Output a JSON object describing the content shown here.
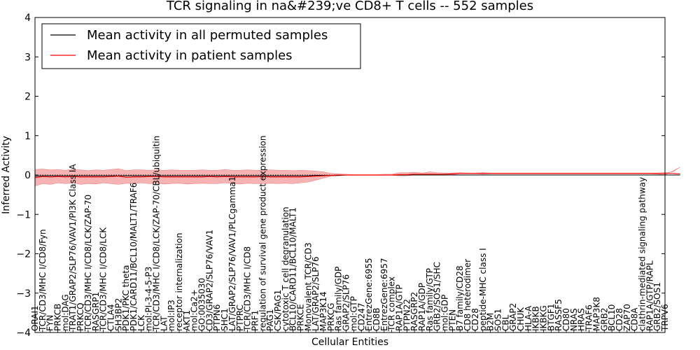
{
  "chart_data": {
    "type": "line",
    "title": "TCR signaling in na&#239;ve CD8+ T cells -- 552 samples",
    "xlabel": "Cellular Entities",
    "ylabel": "Inferred Activity",
    "ylim": [
      -4,
      4
    ],
    "yticks": [
      "−4",
      "−3",
      "−2",
      "−1",
      "0",
      "1",
      "2",
      "3",
      "4"
    ],
    "ytick_values": [
      -4,
      -3,
      -2,
      -1,
      0,
      1,
      2,
      3,
      4
    ],
    "legend_position": "top-left",
    "series": [
      {
        "name": "Mean activity in all permuted samples",
        "color": "#000000"
      },
      {
        "name": "Mean activity in patient samples",
        "color": "#ff0000"
      }
    ],
    "band_color": "#f08080",
    "categories": [
      "ORAI1",
      "TCR/CD3/MHC I/CD8/Fyn",
      "FYN",
      "PRKCB",
      "mol:DAG",
      "TRAT1/GRAP2/SLP76/VAV1/PI3K Class IA",
      "PRKCQ",
      "TCR/CD3/MHC I/CD8/LCK/ZAP-70",
      "RASGRP1",
      "TCR/CD3/MHC I/CD8/LCK",
      "CTLA4",
      "SH3BP2",
      "PDK1/PKC theta",
      "PDK1/CARD11/BCL10/MALT1/TRAF6",
      "LCK",
      "mol:PI-3-4-5-P3",
      "TCR/CD3/MHC I/CD8/LCK/ZAP-70/CBL/ubiquitin",
      "LAT",
      "mol:IP3",
      "receptor internalization",
      "AKT1",
      "mol:Ca2+",
      "GO:0035030",
      "CD3/GRAP2/SLP76/VAV1",
      "PTPN6",
      "SHC1",
      "LAT/GRAP2/SLP76/VAV1/PLCgamma1",
      "PTPRC",
      "TCR/CD3/MHC I/CD8",
      "PRF1",
      "regulation of survival gene product expression",
      "PAG1",
      "CSK/PAG1",
      "cytotoxic T cell degranulation",
      "BCL10/CARD11/BCL10/MALT1",
      "PRKCE",
      "Monovalent TCR/CD3",
      "LAT/GRAP2/SLP76",
      "MAP3K14",
      "PRKCG",
      "Ras family/GDP",
      "GRAP2/SLP76",
      "mol:GTP",
      "CD247",
      "EntrezGene:6955",
      "CD8B",
      "EntrezGene:6957",
      "TCR complex",
      "RAP1A/GTP",
      "PTPN22",
      "RASGRP2",
      "RAP1A/GDP",
      "Ras family/GTP",
      "GRB2/SOS1/SHC",
      "mol:GDP",
      "PTEN",
      "B7 family/CD28",
      "CD8 heterodimer",
      "CD28",
      "peptide-MHC class I",
      "B2M",
      "SOS1",
      "CBL",
      "GRAP2",
      "CHUK",
      "HLA-A",
      "IKBKB",
      "IKBKG",
      "BTGF1",
      "RASSF5",
      "CD80",
      "NRAS",
      "HRAS",
      "TRAF6",
      "MAP3K8",
      "GRB2",
      "BCL10",
      "CD28",
      "ZAP70",
      "CD8A",
      "clathrin-mediated signaling pathway",
      "RAP1A/GTP/RAPL",
      "GRB2/SOS1",
      "TRPV6"
    ],
    "mean_permuted": [
      -0.03,
      -0.02,
      -0.02,
      -0.02,
      -0.02,
      -0.02,
      -0.02,
      -0.02,
      -0.02,
      -0.02,
      -0.02,
      -0.02,
      -0.02,
      -0.02,
      -0.02,
      -0.02,
      -0.02,
      -0.02,
      -0.02,
      -0.02,
      -0.02,
      -0.02,
      -0.02,
      -0.02,
      -0.02,
      -0.02,
      -0.02,
      -0.02,
      -0.02,
      -0.02,
      -0.02,
      -0.02,
      -0.02,
      -0.02,
      -0.02,
      -0.02,
      -0.02,
      -0.01,
      -0.01,
      -0.01,
      -0.01,
      0.0,
      0.0,
      0.0,
      0.0,
      0.0,
      0.0,
      0.0,
      0.0,
      0.0,
      0.0,
      0.0,
      0.0,
      0.0,
      0.0,
      0.0,
      0.0,
      0.0,
      0.0,
      0.0,
      0.0,
      0.0,
      0.0,
      0.0,
      0.0,
      0.0,
      0.0,
      0.0,
      0.0,
      0.0,
      0.0,
      0.0,
      0.0,
      0.0,
      0.0,
      0.0,
      0.0,
      0.0,
      0.0,
      0.0,
      0.0,
      0.0,
      0.0,
      0.0,
      0.0,
      0.0
    ],
    "mean_patient": [
      -0.07,
      -0.04,
      -0.05,
      -0.04,
      -0.05,
      -0.04,
      -0.05,
      -0.05,
      -0.05,
      -0.05,
      -0.04,
      -0.03,
      -0.06,
      -0.05,
      -0.05,
      -0.04,
      -0.04,
      -0.05,
      -0.05,
      -0.05,
      -0.05,
      -0.05,
      -0.05,
      -0.04,
      -0.05,
      -0.04,
      -0.05,
      -0.05,
      -0.05,
      -0.05,
      -0.04,
      -0.05,
      -0.05,
      -0.05,
      -0.05,
      -0.05,
      -0.04,
      -0.03,
      -0.02,
      -0.01,
      0.0,
      0.0,
      0.0,
      0.0,
      0.0,
      0.0,
      0.0,
      0.0,
      0.01,
      0.01,
      0.02,
      0.02,
      0.02,
      0.02,
      0.02,
      0.03,
      0.04,
      0.04,
      0.04,
      0.04,
      0.04,
      0.04,
      0.04,
      0.04,
      0.04,
      0.04,
      0.04,
      0.04,
      0.04,
      0.04,
      0.04,
      0.04,
      0.04,
      0.04,
      0.04,
      0.04,
      0.04,
      0.04,
      0.04,
      0.04,
      0.04,
      0.04,
      0.04,
      0.04,
      0.04,
      0.03
    ],
    "band_upper": [
      0.14,
      0.15,
      0.13,
      0.14,
      0.12,
      0.14,
      0.13,
      0.11,
      0.13,
      0.12,
      0.14,
      0.16,
      0.11,
      0.13,
      0.13,
      0.12,
      0.13,
      0.12,
      0.13,
      0.12,
      0.12,
      0.12,
      0.13,
      0.12,
      0.12,
      0.14,
      0.12,
      0.12,
      0.13,
      0.12,
      0.12,
      0.13,
      0.12,
      0.12,
      0.11,
      0.12,
      0.11,
      0.1,
      0.08,
      0.04,
      0.03,
      0.02,
      0.01,
      0.01,
      0.01,
      0.01,
      0.02,
      0.02,
      0.06,
      0.06,
      0.07,
      0.05,
      0.08,
      0.06,
      0.05,
      0.05,
      0.06,
      0.05,
      0.05,
      0.06,
      0.05,
      0.05,
      0.05,
      0.05,
      0.05,
      0.05,
      0.05,
      0.05,
      0.05,
      0.05,
      0.05,
      0.05,
      0.05,
      0.05,
      0.05,
      0.05,
      0.05,
      0.05,
      0.05,
      0.05,
      0.05,
      0.05,
      0.05,
      0.06,
      0.08,
      0.2
    ],
    "band_lower": [
      -0.28,
      -0.22,
      -0.24,
      -0.2,
      -0.22,
      -0.2,
      -0.24,
      -0.22,
      -0.23,
      -0.2,
      -0.22,
      -0.24,
      -0.21,
      -0.22,
      -0.2,
      -0.22,
      -0.21,
      -0.23,
      -0.22,
      -0.21,
      -0.23,
      -0.22,
      -0.21,
      -0.22,
      -0.22,
      -0.2,
      -0.22,
      -0.23,
      -0.21,
      -0.22,
      -0.22,
      -0.21,
      -0.22,
      -0.21,
      -0.22,
      -0.2,
      -0.18,
      -0.13,
      -0.08,
      -0.03,
      -0.02,
      -0.01,
      -0.01,
      -0.01,
      -0.01,
      -0.01,
      -0.01,
      -0.01,
      -0.02,
      -0.02,
      0.0,
      0.0,
      0.0,
      0.0,
      0.0,
      0.01,
      0.03,
      0.03,
      0.03,
      0.02,
      0.03,
      0.03,
      0.03,
      0.03,
      0.03,
      0.03,
      0.03,
      0.03,
      0.03,
      0.03,
      0.03,
      0.03,
      0.03,
      0.03,
      0.03,
      0.03,
      0.03,
      0.03,
      0.03,
      0.03,
      0.03,
      0.03,
      0.02,
      0.0,
      -0.02,
      -0.2
    ]
  }
}
